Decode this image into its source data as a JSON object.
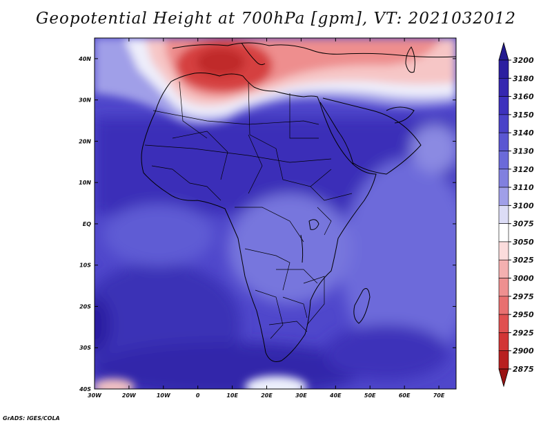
{
  "title": "Geopotential Height at 700hPa [gpm], VT: 2021032012",
  "credit": "GrADS: IGES/COLA",
  "map": {
    "variable": "Geopotential Height at 700hPa",
    "units": "gpm",
    "valid_time": "2021032012",
    "lon_range": [
      -30,
      75
    ],
    "lat_range": [
      -40,
      45
    ],
    "lon_ticks": [
      "30W",
      "20W",
      "10W",
      "0",
      "10E",
      "20E",
      "30E",
      "40E",
      "50E",
      "60E",
      "70E"
    ],
    "lat_ticks": [
      "40S",
      "30S",
      "20S",
      "10S",
      "EQ",
      "10N",
      "20N",
      "30N",
      "40N"
    ]
  },
  "colorbar": {
    "levels": [
      "3200",
      "3180",
      "3160",
      "3150",
      "3140",
      "3130",
      "3120",
      "3110",
      "3100",
      "3075",
      "3050",
      "3025",
      "3000",
      "2975",
      "2950",
      "2925",
      "2900",
      "2875"
    ],
    "colors": [
      "#231a8f",
      "#2c1fa0",
      "#3527b0",
      "#3d31bd",
      "#4a42c8",
      "#5a56d2",
      "#6b6ad9",
      "#8180df",
      "#a09fe8",
      "#dcdcf6",
      "#ffffff",
      "#fbdcdc",
      "#f4b0b0",
      "#ee9090",
      "#e87070",
      "#e05050",
      "#d23535",
      "#b82020",
      "#9a1414"
    ]
  },
  "colors": {
    "high_blue": "#3a2fb8",
    "low_red": "#c83030",
    "land_outline": "#000000"
  }
}
